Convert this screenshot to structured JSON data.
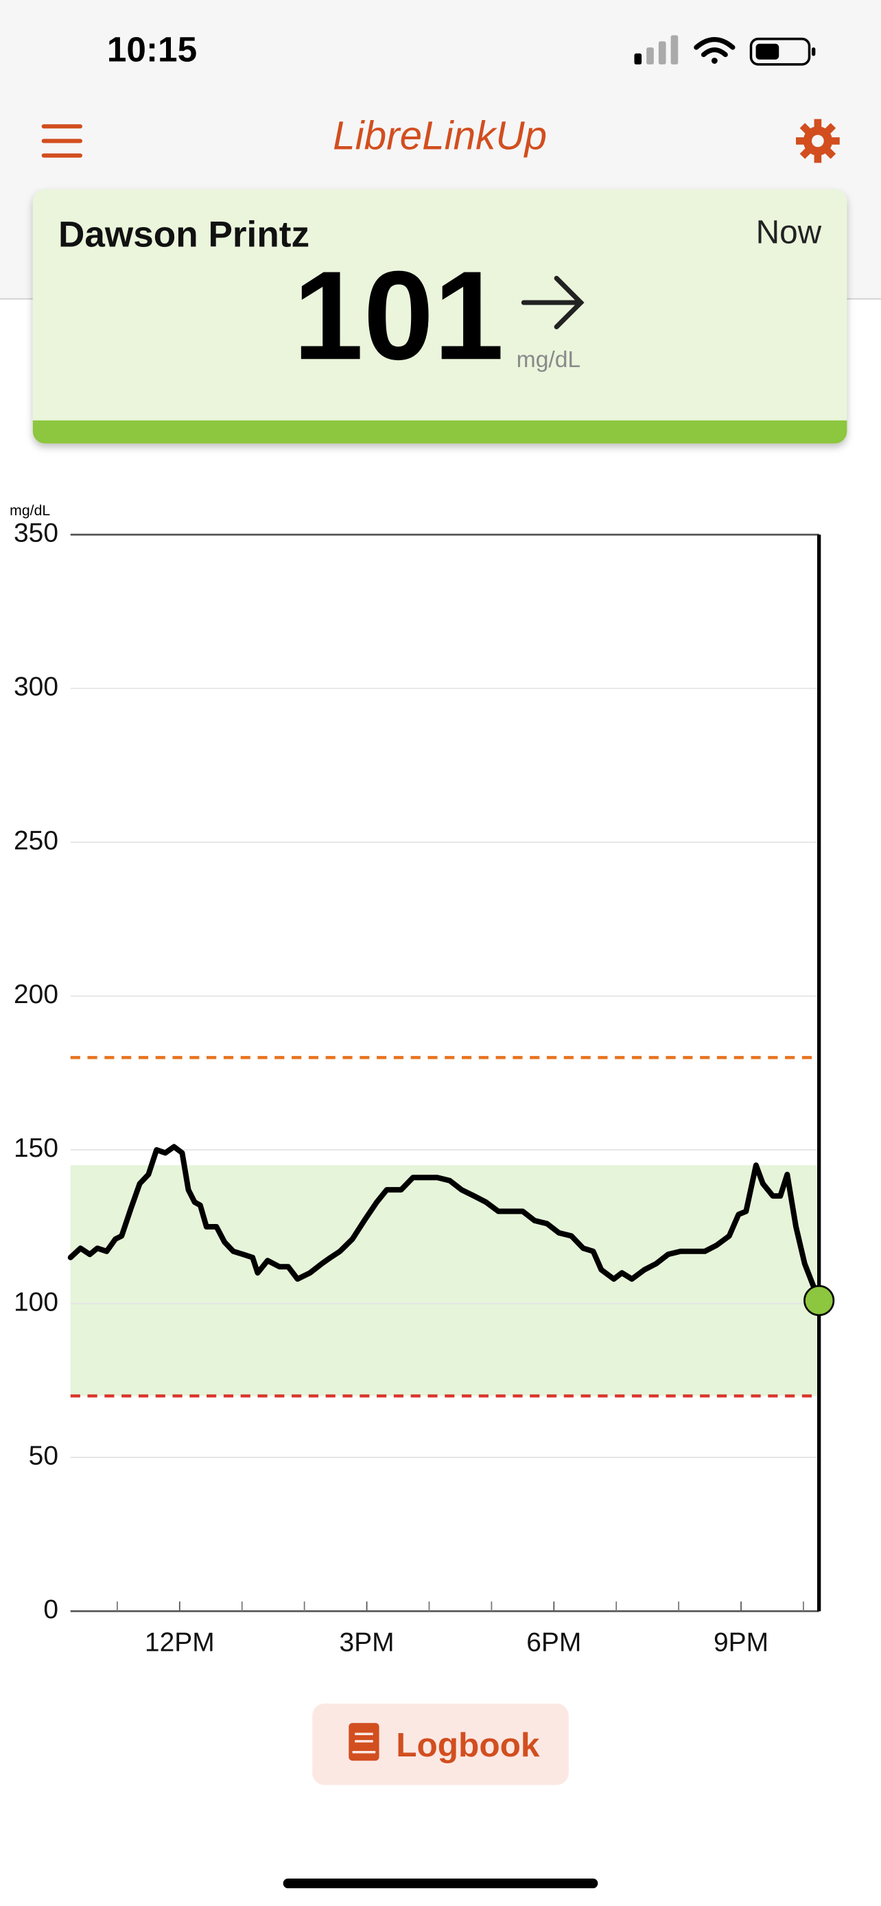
{
  "status_bar": {
    "time": "10:15"
  },
  "header": {
    "title": "LibreLinkUp"
  },
  "reading": {
    "name": "Dawson Printz",
    "when": "Now",
    "value": 101,
    "unit": "mg/dL"
  },
  "chart_data": {
    "type": "line",
    "y_unit": "mg/dL",
    "x": [
      10.25,
      10.41,
      10.56,
      10.68,
      10.83,
      10.97,
      11.07,
      11.22,
      11.36,
      11.5,
      11.63,
      11.77,
      11.91,
      12.04,
      12.14,
      12.24,
      12.33,
      12.43,
      12.59,
      12.72,
      12.86,
      13.02,
      13.17,
      13.25,
      13.41,
      13.6,
      13.74,
      13.89,
      14.09,
      14.28,
      14.42,
      14.57,
      14.77,
      14.96,
      15.16,
      15.32,
      15.55,
      15.74,
      15.94,
      16.13,
      16.33,
      16.52,
      16.72,
      16.91,
      17.11,
      17.3,
      17.5,
      17.69,
      17.89,
      18.08,
      18.28,
      18.47,
      18.63,
      18.76,
      18.96,
      19.09,
      19.25,
      19.45,
      19.64,
      19.83,
      20.03,
      20.22,
      20.42,
      20.61,
      20.81,
      20.96,
      21.08,
      21.24,
      21.35,
      21.51,
      21.63,
      21.74,
      21.88,
      22.02,
      22.25
    ],
    "series": [
      {
        "color": "#000000",
        "values": [
          115,
          118,
          116,
          118,
          117,
          121,
          122,
          131,
          139,
          142,
          150,
          149,
          151,
          149,
          137,
          133,
          132,
          125,
          125,
          120,
          117,
          116,
          115,
          110,
          114,
          112,
          112,
          108,
          110,
          113,
          115,
          117,
          121,
          127,
          133,
          137,
          137,
          141,
          141,
          141,
          140,
          137,
          135,
          133,
          130,
          130,
          130,
          127,
          126,
          123,
          122,
          118,
          117,
          111,
          108,
          110,
          108,
          111,
          113,
          116,
          117,
          117,
          117,
          119,
          122,
          129,
          130,
          145,
          139,
          135,
          135,
          142,
          125,
          113,
          101
        ]
      }
    ],
    "xlim": [
      10.25,
      22.25
    ],
    "xticks": [
      {
        "value": 12,
        "label": "12PM"
      },
      {
        "value": 15,
        "label": "3PM"
      },
      {
        "value": 18,
        "label": "6PM"
      },
      {
        "value": 21,
        "label": "9PM"
      }
    ],
    "xminorticks": [
      11,
      13,
      14,
      16,
      17,
      19,
      20,
      22
    ],
    "ylim": [
      0,
      350
    ],
    "yticks": [
      0,
      50,
      100,
      150,
      200,
      250,
      300,
      350
    ],
    "grid": true,
    "range_band": {
      "low": 70,
      "high": 145,
      "color": "#e6f4d9"
    },
    "threshold_lines": [
      {
        "value": 180,
        "color": "#e8731e"
      },
      {
        "value": 70,
        "color": "#d9342b"
      }
    ],
    "marker_color": "#8dc63f"
  },
  "button": {
    "label": "Logbook"
  }
}
